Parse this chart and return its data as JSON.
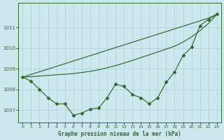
{
  "title": "Graphe pression niveau de la mer (hPa)",
  "bg_color": "#cce8ee",
  "grid_color": "#aad0d8",
  "line_color": "#2d6a2d",
  "xlim": [
    -0.5,
    23.5
  ],
  "ylim": [
    1006.4,
    1012.2
  ],
  "yticks": [
    1007,
    1008,
    1009,
    1010,
    1011
  ],
  "xticks": [
    0,
    1,
    2,
    3,
    4,
    5,
    6,
    7,
    8,
    9,
    10,
    11,
    12,
    13,
    14,
    15,
    16,
    17,
    18,
    19,
    20,
    21,
    22,
    23
  ],
  "zigzag": [
    1008.6,
    1008.4,
    1008.0,
    1007.6,
    1007.3,
    1007.3,
    1006.75,
    1006.85,
    1007.05,
    1007.1,
    1007.6,
    1008.25,
    1008.15,
    1007.75,
    1007.6,
    1007.3,
    1007.6,
    1008.35,
    1008.85,
    1009.65,
    1010.05,
    1011.1,
    1011.4,
    1011.65
  ],
  "linear1": [
    1008.6,
    1008.73,
    1008.86,
    1008.99,
    1009.12,
    1009.25,
    1009.38,
    1009.51,
    1009.64,
    1009.77,
    1009.9,
    1010.03,
    1010.16,
    1010.29,
    1010.42,
    1010.55,
    1010.68,
    1010.81,
    1010.94,
    1011.07,
    1011.2,
    1011.33,
    1011.46,
    1011.65
  ],
  "linear2": [
    1008.6,
    1008.62,
    1008.65,
    1008.68,
    1008.71,
    1008.74,
    1008.77,
    1008.82,
    1008.88,
    1008.95,
    1009.05,
    1009.16,
    1009.28,
    1009.41,
    1009.55,
    1009.68,
    1009.82,
    1009.96,
    1010.1,
    1010.3,
    1010.55,
    1010.85,
    1011.2,
    1011.65
  ]
}
